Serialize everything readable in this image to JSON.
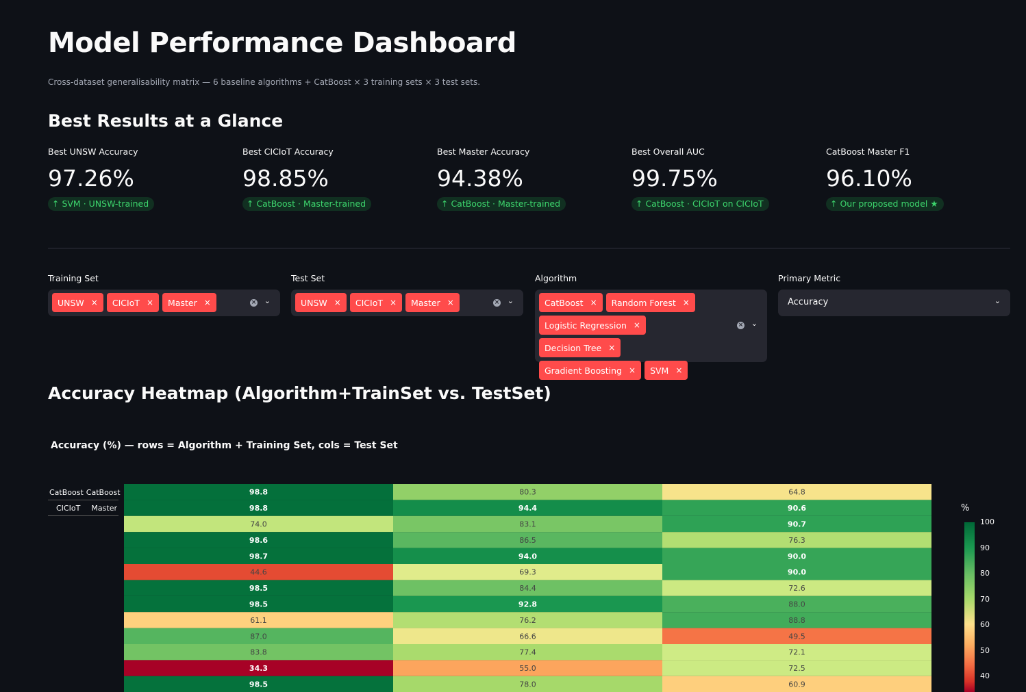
{
  "header": {
    "title": "Model Performance Dashboard",
    "subtitle": "Cross-dataset generalisability matrix — 6 baseline algorithms + CatBoost × 3 training sets × 3 test sets."
  },
  "summary": {
    "title": "Best Results at a Glance",
    "metrics": [
      {
        "label": "Best UNSW Accuracy",
        "value": "97.26%",
        "delta": "↑ SVM · UNSW-trained"
      },
      {
        "label": "Best CICIoT Accuracy",
        "value": "98.85%",
        "delta": "↑ CatBoost · Master-trained"
      },
      {
        "label": "Best Master Accuracy",
        "value": "94.38%",
        "delta": "↑ CatBoost · Master-trained"
      },
      {
        "label": "Best Overall AUC",
        "value": "99.75%",
        "delta": "↑ CatBoost · CICIoT on CICIoT"
      },
      {
        "label": "CatBoost Master F1",
        "value": "96.10%",
        "delta": "↑ Our proposed model ★"
      }
    ]
  },
  "filters": {
    "training_set": {
      "label": "Training Set",
      "tags": [
        "UNSW",
        "CICIoT",
        "Master"
      ]
    },
    "test_set": {
      "label": "Test Set",
      "tags": [
        "UNSW",
        "CICIoT",
        "Master"
      ]
    },
    "algorithm": {
      "label": "Algorithm",
      "tags": [
        "CatBoost",
        "Random Forest",
        "Logistic Regression",
        "Decision Tree",
        "Gradient Boosting",
        "SVM"
      ]
    },
    "primary_metric": {
      "label": "Primary Metric",
      "value": "Accuracy"
    },
    "remove_glyph": "×",
    "clear_glyph": "×",
    "dropdown_glyph": "⌄"
  },
  "heatmap_section": {
    "title": "Accuracy Heatmap (Algorithm+TrainSet vs. TestSet)"
  },
  "chart_data": {
    "type": "heatmap",
    "title": "Accuracy (%) — rows = Algorithm + Training Set, cols = Test Set",
    "row_labels_visible": [
      [
        "CatBoost",
        "CatBoost"
      ],
      [
        "CICIoT",
        "Master"
      ]
    ],
    "values": [
      [
        98.8,
        80.3,
        64.8
      ],
      [
        98.8,
        94.4,
        90.6
      ],
      [
        74.0,
        83.1,
        90.7
      ],
      [
        98.6,
        86.5,
        76.3
      ],
      [
        98.7,
        94.0,
        90.0
      ],
      [
        44.6,
        69.3,
        90.0
      ],
      [
        98.5,
        84.4,
        72.6
      ],
      [
        98.5,
        92.8,
        88.0
      ],
      [
        61.1,
        76.2,
        88.8
      ],
      [
        87.0,
        66.6,
        49.5
      ],
      [
        83.8,
        77.4,
        72.1
      ],
      [
        34.3,
        55.0,
        72.5
      ],
      [
        98.5,
        78.0,
        60.9
      ]
    ],
    "colorbar": {
      "title": "%",
      "ticks": [
        100,
        90,
        80,
        70,
        60,
        50,
        40
      ],
      "range": [
        34,
        100
      ]
    },
    "colorscale": [
      "#a50026",
      "#d73027",
      "#f46d43",
      "#fdae61",
      "#fee08b",
      "#d9ef8b",
      "#a6d96a",
      "#66bd63",
      "#1a9850",
      "#006837"
    ]
  }
}
